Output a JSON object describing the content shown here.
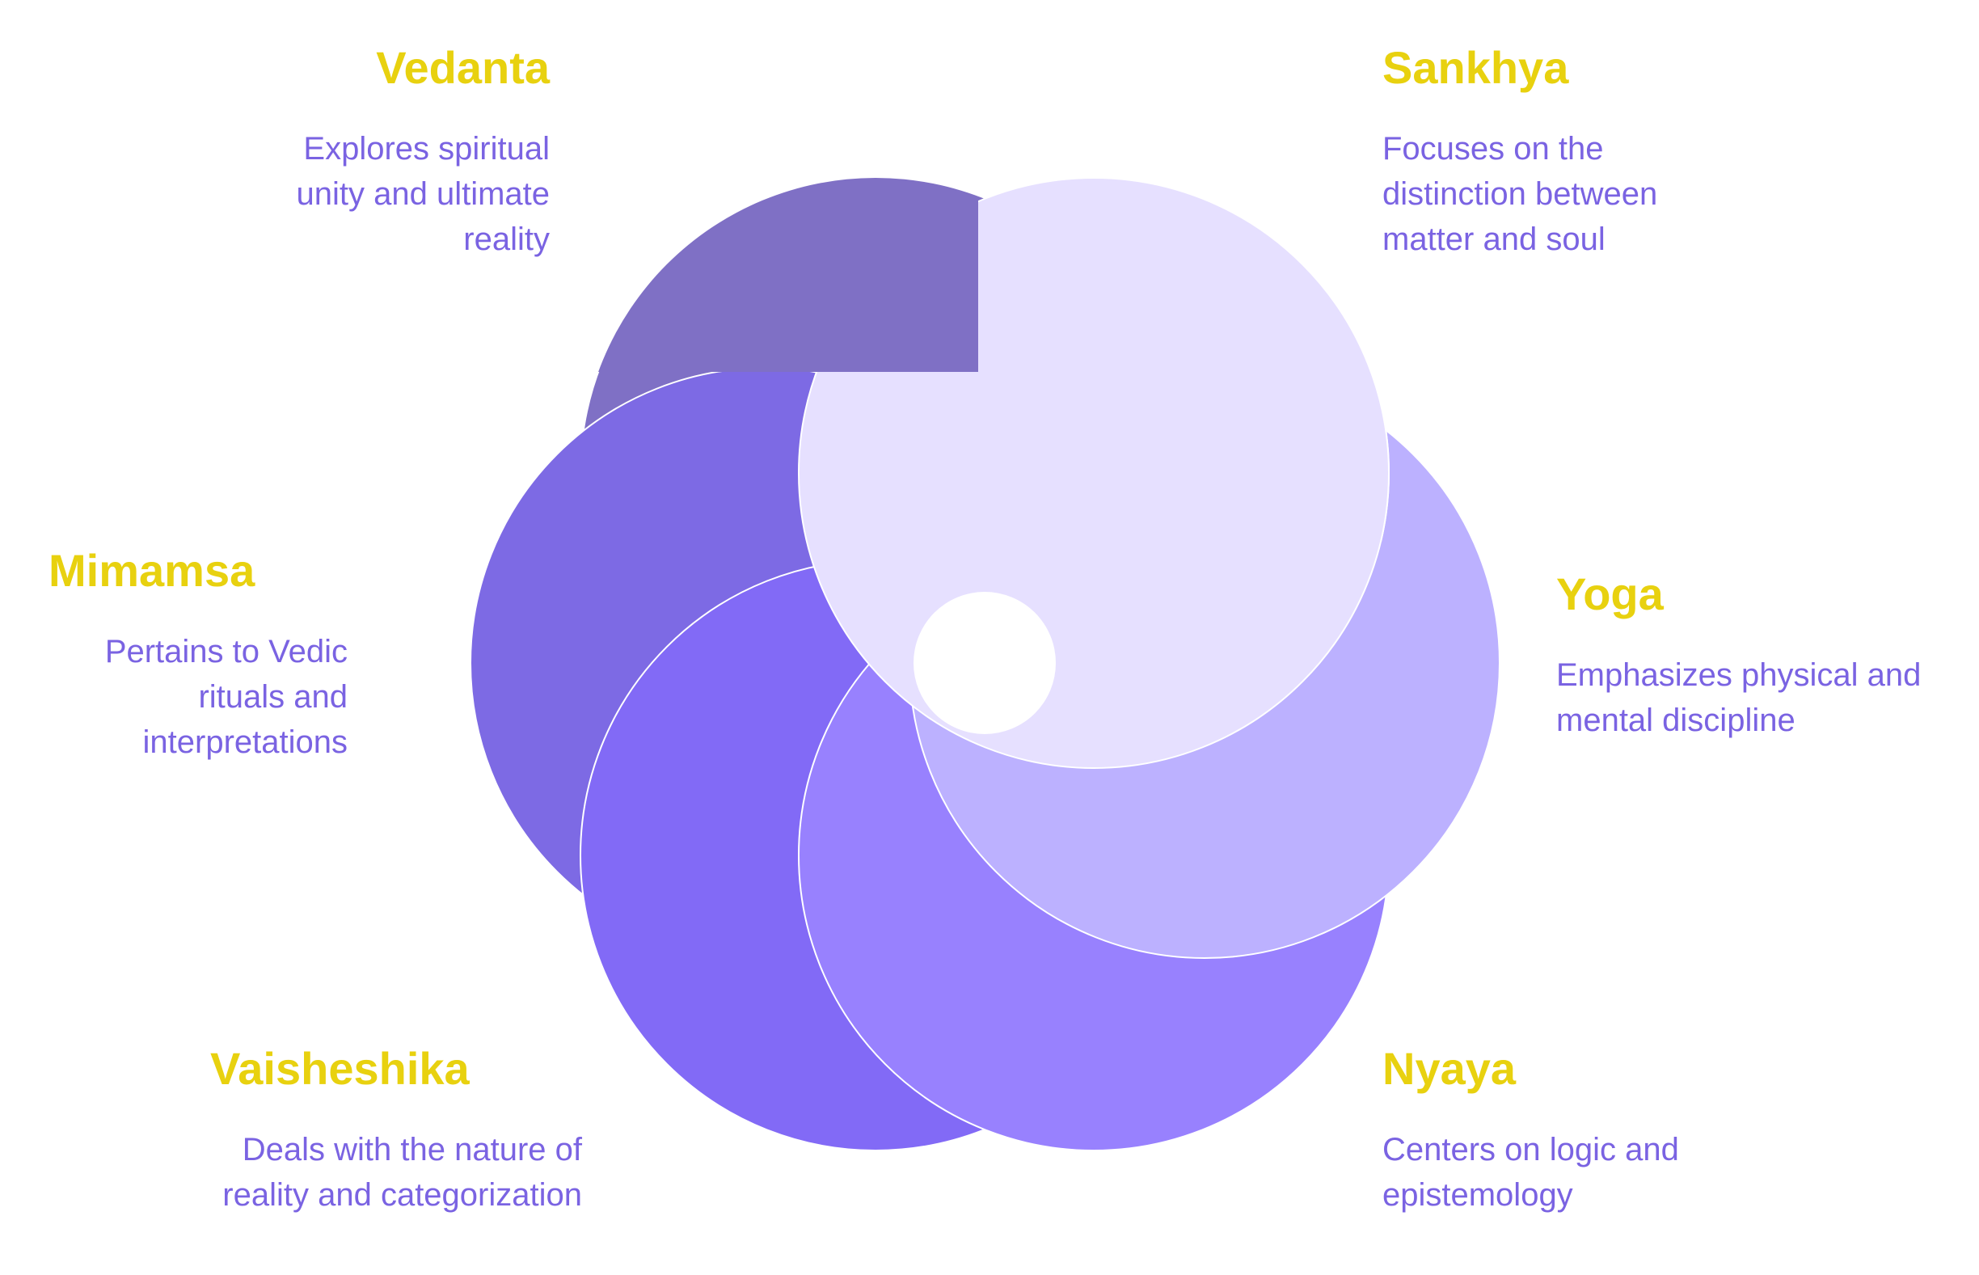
{
  "colors": {
    "title": "#E8D10F",
    "description": "#7A63E2",
    "vedanta": "#7F70C5",
    "sankhya": "#E6E0FF",
    "yoga": "#BCB1FF",
    "nyaya": "#9881FE",
    "vaisheshika": "#826AF6",
    "mimamsa": "#7D6AE4",
    "center": "#FFFFFF"
  },
  "schools": [
    {
      "id": "vedanta",
      "title": "Vedanta",
      "description": "Explores spiritual unity and ultimate reality"
    },
    {
      "id": "sankhya",
      "title": "Sankhya",
      "description": "Focuses on the distinction between matter and soul"
    },
    {
      "id": "mimamsa",
      "title": "Mimamsa",
      "description": "Pertains to Vedic rituals and interpretations"
    },
    {
      "id": "yoga",
      "title": "Yoga",
      "description": "Emphasizes physical and mental discipline"
    },
    {
      "id": "vaisheshika",
      "title": "Vaisheshika",
      "description": "Deals with the nature of reality and categorization"
    },
    {
      "id": "nyaya",
      "title": "Nyaya",
      "description": "Centers on logic and epistemology"
    }
  ]
}
